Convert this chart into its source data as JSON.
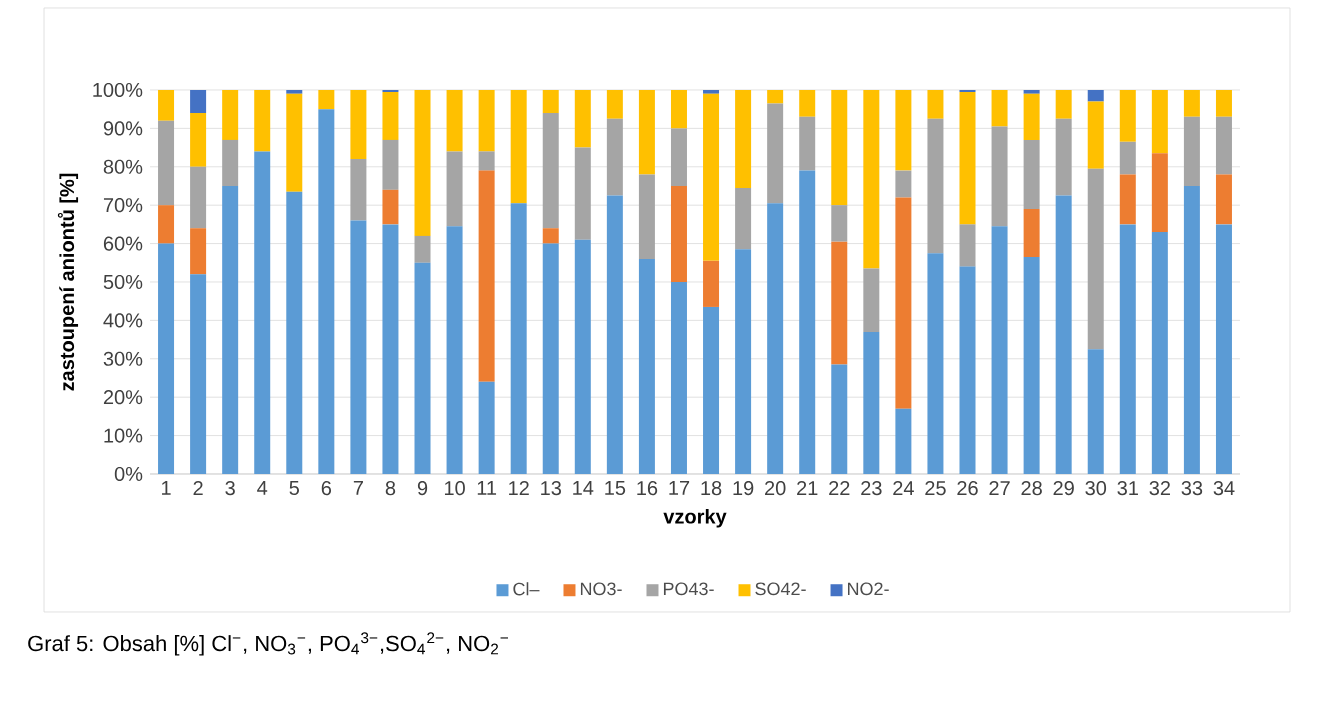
{
  "chart_data": {
    "type": "bar",
    "stacked": true,
    "categories": [
      "1",
      "2",
      "3",
      "4",
      "5",
      "6",
      "7",
      "8",
      "9",
      "10",
      "11",
      "12",
      "13",
      "14",
      "15",
      "16",
      "17",
      "18",
      "19",
      "20",
      "21",
      "22",
      "23",
      "24",
      "25",
      "26",
      "27",
      "28",
      "29",
      "30",
      "31",
      "32",
      "33",
      "34"
    ],
    "series": [
      {
        "name": "Cl–",
        "color": "#5b9bd5",
        "values": [
          60,
          52,
          75,
          84,
          73.5,
          95,
          66,
          65,
          55,
          64.5,
          24,
          70.5,
          60,
          61,
          72.5,
          56,
          50,
          43.5,
          58.5,
          70.5,
          79,
          28.5,
          37,
          17,
          57.5,
          54,
          64.5,
          56.5,
          72.5,
          32.5,
          65,
          63,
          75,
          65
        ]
      },
      {
        "name": "NO3-",
        "color": "#ed7d31",
        "values": [
          10,
          12,
          0,
          0,
          0,
          0,
          0,
          9,
          0,
          0,
          55,
          0,
          4,
          0,
          0,
          0,
          25,
          12,
          0,
          0,
          0,
          32,
          0,
          55,
          0,
          0,
          0,
          12.5,
          0,
          0,
          13,
          20.5,
          0,
          13
        ]
      },
      {
        "name": "PO43-",
        "color": "#a5a5a5",
        "values": [
          22,
          16,
          12,
          0,
          0,
          0,
          16,
          13,
          7,
          19.5,
          5,
          0,
          30,
          24,
          20,
          22,
          15,
          0,
          16,
          26,
          14,
          9.5,
          16.5,
          7,
          35,
          11,
          26,
          18,
          20,
          47,
          8.5,
          0,
          18,
          15
        ]
      },
      {
        "name": "SO42-",
        "color": "#ffc000",
        "values": [
          8,
          14,
          13,
          16,
          25.5,
          5,
          18,
          12.5,
          38,
          16,
          16,
          29.5,
          6,
          15,
          7.5,
          22,
          10,
          43.5,
          25.5,
          3.5,
          7,
          30,
          46.5,
          21,
          7.5,
          34.5,
          9.5,
          12,
          7.5,
          17.5,
          13.5,
          16.5,
          7,
          7
        ]
      },
      {
        "name": "NO2-",
        "color": "#4472c4",
        "values": [
          0,
          6,
          0,
          0,
          1,
          0,
          0,
          0.5,
          0,
          0,
          0,
          0,
          0,
          0,
          0,
          0,
          0,
          1,
          0,
          0,
          0,
          0,
          0,
          0,
          0,
          0.5,
          0,
          1,
          0,
          3,
          0,
          0,
          0,
          0
        ]
      }
    ],
    "ylim": [
      0,
      100
    ],
    "yticks": [
      {
        "value": 0,
        "label": "0%"
      },
      {
        "value": 10,
        "label": "10%"
      },
      {
        "value": 20,
        "label": "20%"
      },
      {
        "value": 30,
        "label": "30%"
      },
      {
        "value": 40,
        "label": "40%"
      },
      {
        "value": 50,
        "label": "50%"
      },
      {
        "value": 60,
        "label": "60%"
      },
      {
        "value": 70,
        "label": "70%"
      },
      {
        "value": 80,
        "label": "80%"
      },
      {
        "value": 90,
        "label": "90%"
      },
      {
        "value": 100,
        "label": "100%"
      }
    ],
    "xlabel": "vzorky",
    "ylabel": "zastoupení aniontů [%]",
    "grid": "y",
    "legend": "bottom",
    "annotations": [
      "Graf 5: Obsah [%] Cl$^{−}$, NO$_{3}$$^{−}$, PO$_{4}$$^{3−}$,SO$_{4}$$^{2−}$, NO$_{2}$$^{−}$"
    ]
  }
}
